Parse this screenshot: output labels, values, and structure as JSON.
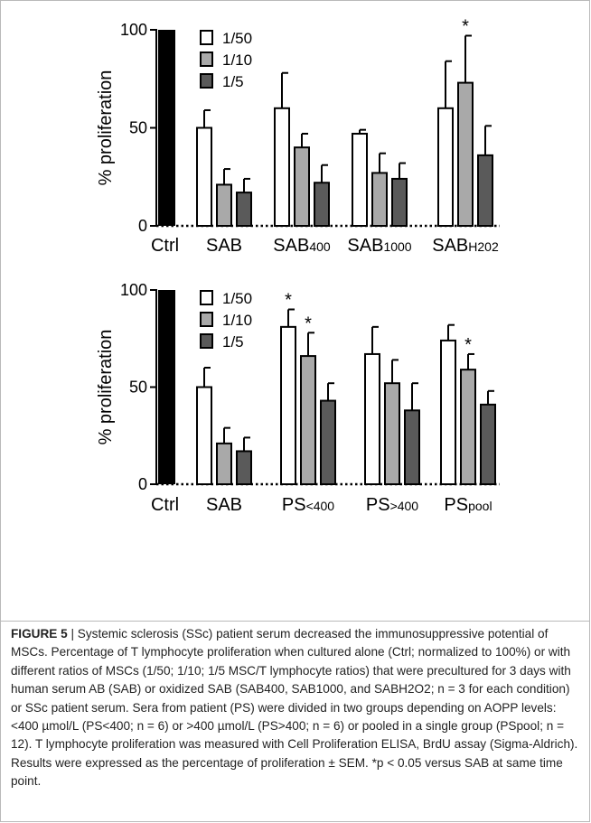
{
  "chart_data": [
    {
      "type": "bar",
      "ylabel": "% proliferation",
      "ylim": [
        0,
        100
      ],
      "yticks": [
        0,
        50,
        100
      ],
      "categories": [
        "Ctrl",
        "SAB",
        "SAB400",
        "SAB1000",
        "SABH202"
      ],
      "category_labels": [
        {
          "main": "Ctrl",
          "sub": ""
        },
        {
          "main": "SAB",
          "sub": ""
        },
        {
          "main": "SAB",
          "sub": "400"
        },
        {
          "main": "SAB",
          "sub": "1000"
        },
        {
          "main": "SAB",
          "sub": "H202"
        }
      ],
      "control_value": 100,
      "series": [
        {
          "name": "1/50",
          "color": "#ffffff",
          "values": [
            null,
            50,
            60,
            47,
            60
          ],
          "errors": [
            null,
            9,
            18,
            2,
            24
          ],
          "star": [
            false,
            false,
            false,
            false,
            false
          ]
        },
        {
          "name": "1/10",
          "color": "#a9a9a9",
          "values": [
            null,
            21,
            40,
            27,
            73
          ],
          "errors": [
            null,
            8,
            7,
            10,
            24
          ],
          "star": [
            false,
            false,
            false,
            false,
            true
          ]
        },
        {
          "name": "1/5",
          "color": "#5a5a5a",
          "values": [
            null,
            17,
            22,
            24,
            36
          ],
          "errors": [
            null,
            7,
            9,
            8,
            15
          ],
          "star": [
            false,
            false,
            false,
            false,
            false
          ]
        }
      ],
      "star_symbol": "*",
      "legend": "top-left"
    },
    {
      "type": "bar",
      "ylabel": "% proliferation",
      "ylim": [
        0,
        100
      ],
      "yticks": [
        0,
        50,
        100
      ],
      "categories": [
        "Ctrl",
        "SAB",
        "PS<400",
        "PS>400",
        "PSpool"
      ],
      "category_labels": [
        {
          "main": "Ctrl",
          "sub": ""
        },
        {
          "main": "SAB",
          "sub": ""
        },
        {
          "main": "PS",
          "sub": "<400"
        },
        {
          "main": "PS",
          "sub": ">400"
        },
        {
          "main": "PS",
          "sub": "pool"
        }
      ],
      "control_value": 100,
      "series": [
        {
          "name": "1/50",
          "color": "#ffffff",
          "values": [
            null,
            50,
            81,
            67,
            74
          ],
          "errors": [
            null,
            10,
            9,
            14,
            8
          ],
          "star": [
            false,
            false,
            true,
            false,
            false
          ]
        },
        {
          "name": "1/10",
          "color": "#a9a9a9",
          "values": [
            null,
            21,
            66,
            52,
            59
          ],
          "errors": [
            null,
            8,
            12,
            12,
            8
          ],
          "star": [
            false,
            false,
            true,
            false,
            true
          ]
        },
        {
          "name": "1/5",
          "color": "#5a5a5a",
          "values": [
            null,
            17,
            43,
            38,
            41
          ],
          "errors": [
            null,
            7,
            9,
            14,
            7
          ],
          "star": [
            false,
            false,
            false,
            false,
            false
          ]
        }
      ],
      "star_symbol": "*",
      "legend": "top-left"
    }
  ],
  "caption": {
    "lead": "FIGURE 5",
    "text": " | Systemic sclerosis (SSc) patient serum decreased the immunosuppressive potential of MSCs. Percentage of T lymphocyte proliferation when cultured alone (Ctrl; normalized to 100%) or with different ratios of MSCs (1/50; 1/10; 1/5 MSC/T lymphocyte ratios) that were precultured for 3 days with human serum AB (SAB) or oxidized SAB (SAB400, SAB1000, and SABH2O2; n = 3 for each condition) or SSc patient serum. Sera from patient (PS) were divided in two groups depending on AOPP levels: <400 µmol/L (PS<400; n = 6) or >400 µmol/L (PS>400; n = 6) or pooled in a single group (PSpool; n = 12). T lymphocyte proliferation was measured with Cell Proliferation ELISA, BrdU assay (Sigma-Aldrich). Results were expressed as the percentage of proliferation ± SEM. *p < 0.05 versus SAB at same time point."
  }
}
